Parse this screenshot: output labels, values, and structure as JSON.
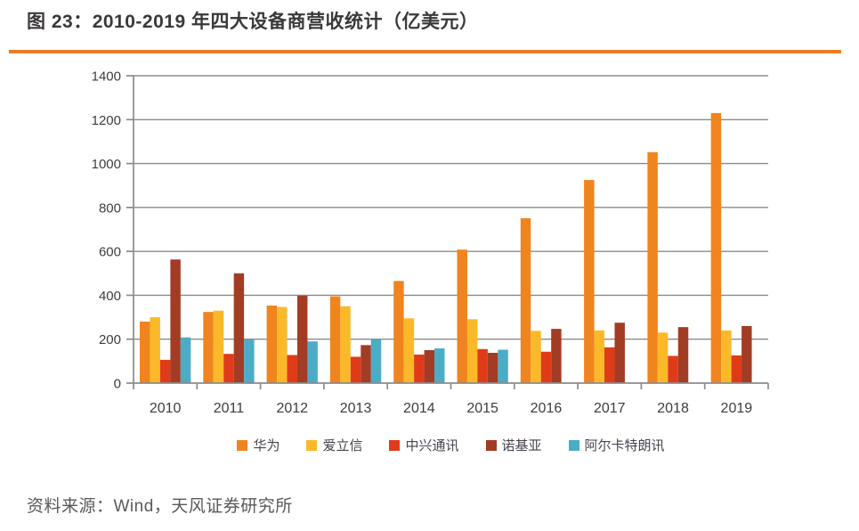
{
  "page": {
    "title": "图 23：2010-2019 年四大设备商营收统计（亿美元）",
    "source": "资料来源：Wind，天风证券研究所",
    "accent_rule_color": "#E87E2A"
  },
  "chart_data": {
    "type": "bar",
    "title": "2010-2019 年四大设备商营收统计（亿美元）",
    "unit": "亿美元",
    "categories": [
      "2010",
      "2011",
      "2012",
      "2013",
      "2014",
      "2015",
      "2016",
      "2017",
      "2018",
      "2019"
    ],
    "series": [
      {
        "name": "华为",
        "color": "#F0841F",
        "values": [
          280,
          324,
          353,
          395,
          465,
          608,
          751,
          925,
          1052,
          1230
        ]
      },
      {
        "name": "爱立信",
        "color": "#FBB929",
        "values": [
          300,
          330,
          347,
          350,
          295,
          291,
          238,
          240,
          230,
          240
        ]
      },
      {
        "name": "中兴通讯",
        "color": "#E03B19",
        "values": [
          106,
          133,
          128,
          120,
          130,
          155,
          143,
          163,
          124,
          126
        ]
      },
      {
        "name": "诺基亚",
        "color": "#A33C24",
        "values": [
          563,
          500,
          398,
          173,
          150,
          138,
          247,
          275,
          255,
          260
        ]
      },
      {
        "name": "阿尔卡特朗讯",
        "color": "#4BACC6",
        "values": [
          208,
          198,
          190,
          200,
          158,
          152,
          0,
          0,
          0,
          0
        ]
      }
    ],
    "ylim": [
      0,
      1400
    ],
    "ytick_step": 200,
    "grid": true,
    "legend_position": "bottom",
    "axis_color": "#8B8B8B"
  }
}
